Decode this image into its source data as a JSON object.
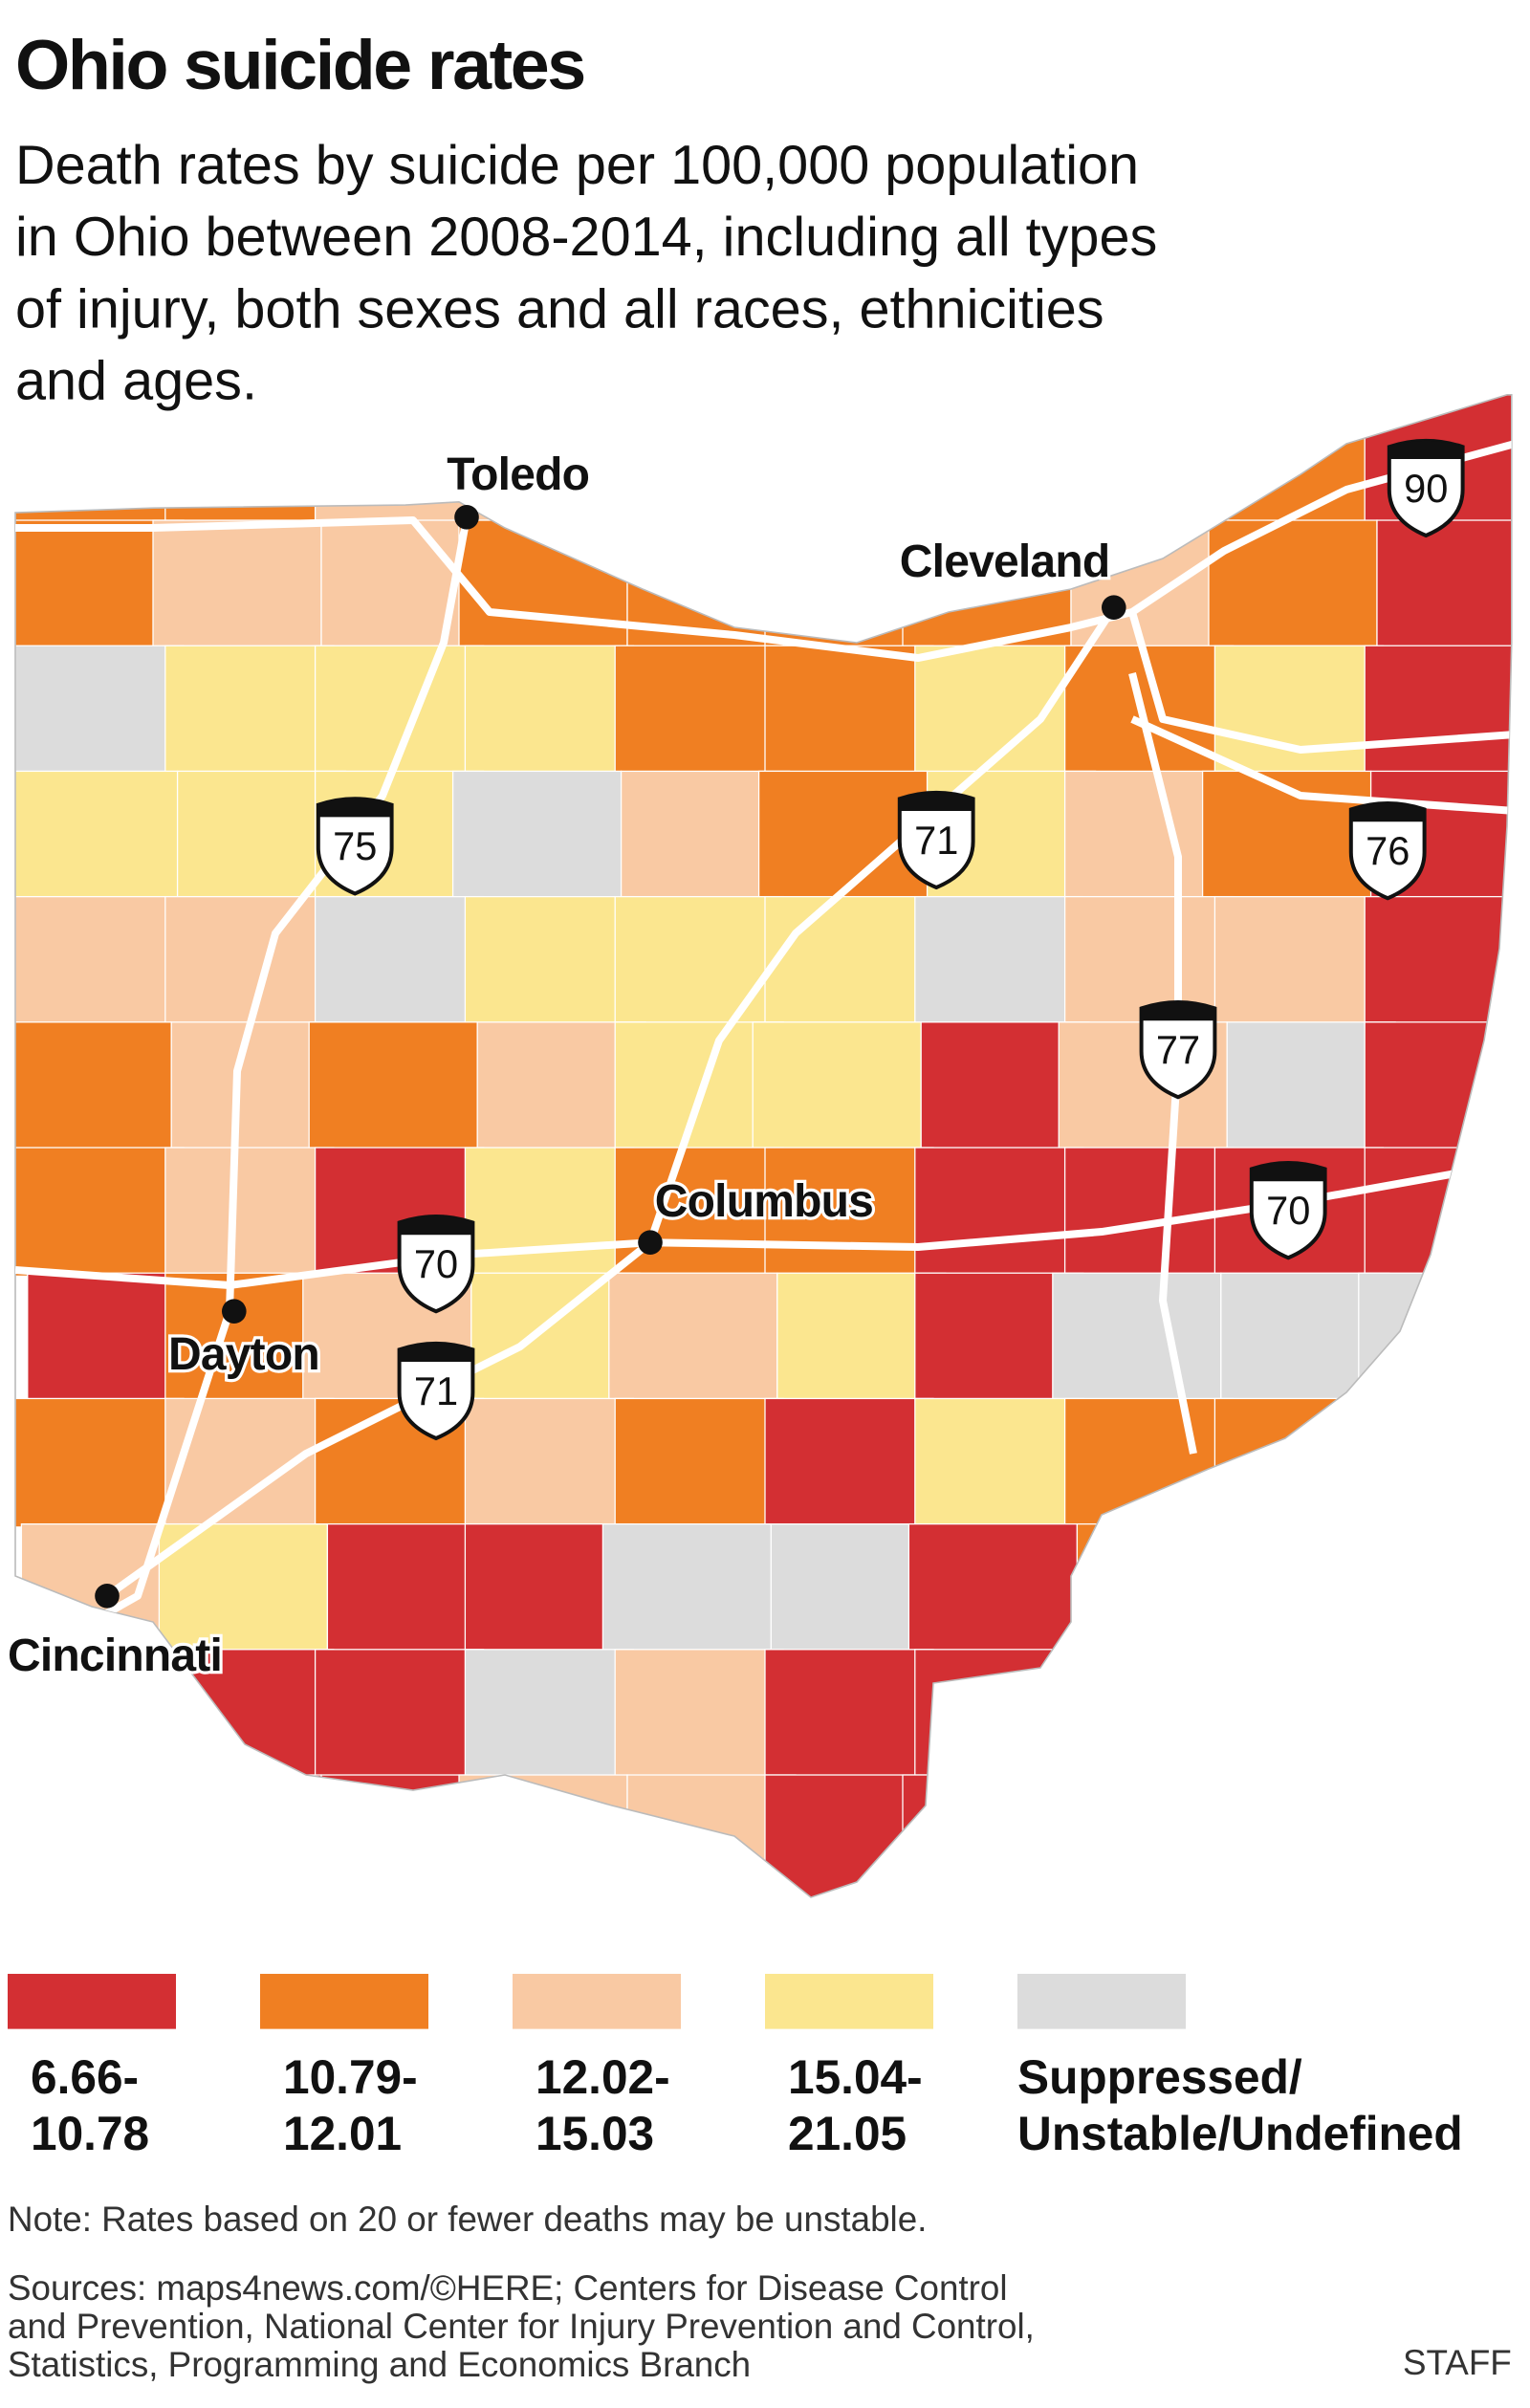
{
  "title": "Ohio suicide rates",
  "subtitle_lines": [
    "Death rates by suicide per 100,000 population",
    "in Ohio between 2008-2014, including all types",
    "of injury, both sexes and all races, ethnicities",
    "and ages."
  ],
  "cities": [
    "Toledo",
    "Cleveland",
    "Columbus",
    "Dayton",
    "Cincinnati"
  ],
  "interstates": [
    "90",
    "76",
    "75",
    "71",
    "77",
    "70",
    "70",
    "71"
  ],
  "legend": [
    {
      "color": "#d32f33",
      "label_lines": [
        "6.66-",
        "10.78"
      ]
    },
    {
      "color": "#f07f22",
      "label_lines": [
        "10.79-",
        "12.01"
      ]
    },
    {
      "color": "#f9c9a3",
      "label_lines": [
        "12.02-",
        "15.03"
      ]
    },
    {
      "color": "#fbe68f",
      "label_lines": [
        "15.04-",
        "21.05"
      ]
    },
    {
      "color": "#dcdcdc",
      "label_lines": [
        "Suppressed/",
        "Unstable/Undefined"
      ]
    }
  ],
  "note": "Note: Rates based on 20 or fewer deaths may be unstable.",
  "sources_lines": [
    "Sources: maps4news.com/©HERE; Centers for Disease Control",
    "and Prevention, National Center for Injury Prevention and Control,",
    "Statistics, Programming and Economics Branch"
  ],
  "credit": "STAFF"
}
